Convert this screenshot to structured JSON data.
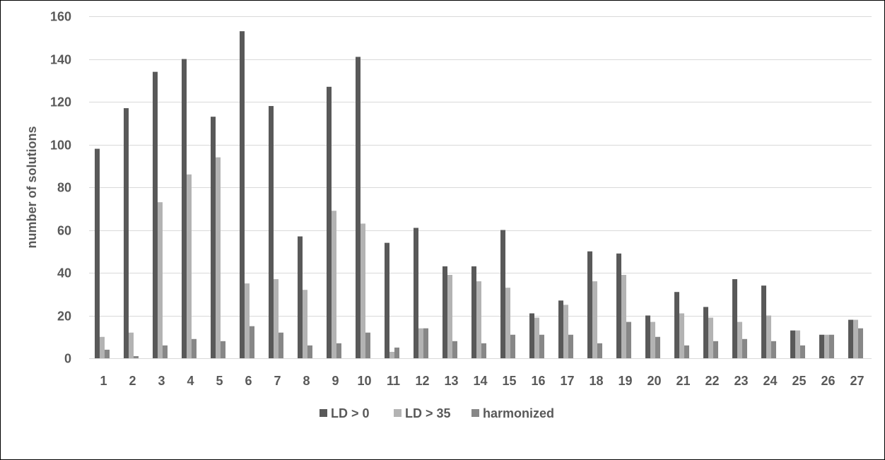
{
  "chart_data": {
    "type": "bar",
    "title": "",
    "xlabel": "",
    "ylabel": "number of solutions",
    "ylim": [
      0,
      160
    ],
    "yticks": [
      0,
      20,
      40,
      60,
      80,
      100,
      120,
      140,
      160
    ],
    "grid": true,
    "legend_position": "bottom",
    "categories": [
      "1",
      "2",
      "3",
      "4",
      "5",
      "6",
      "7",
      "8",
      "9",
      "10",
      "11",
      "12",
      "13",
      "14",
      "15",
      "16",
      "17",
      "18",
      "19",
      "20",
      "21",
      "22",
      "23",
      "24",
      "25",
      "26",
      "27"
    ],
    "series": [
      {
        "name": "LD > 0",
        "color": "#595959",
        "values": [
          98,
          117,
          134,
          140,
          113,
          153,
          118,
          57,
          127,
          141,
          54,
          61,
          43,
          43,
          60,
          21,
          27,
          50,
          49,
          20,
          31,
          24,
          37,
          34,
          13,
          11,
          18
        ]
      },
      {
        "name": "LD > 35",
        "color": "#b3b3b3",
        "values": [
          10,
          12,
          73,
          86,
          94,
          35,
          37,
          32,
          69,
          63,
          3,
          14,
          39,
          36,
          33,
          19,
          25,
          36,
          39,
          17,
          21,
          19,
          17,
          20,
          13,
          11,
          18
        ]
      },
      {
        "name": "harmonized",
        "color": "#878787",
        "values": [
          4,
          1,
          6,
          9,
          8,
          15,
          12,
          6,
          7,
          12,
          5,
          14,
          8,
          7,
          11,
          11,
          11,
          7,
          17,
          10,
          6,
          8,
          9,
          8,
          6,
          11,
          14
        ]
      }
    ]
  }
}
